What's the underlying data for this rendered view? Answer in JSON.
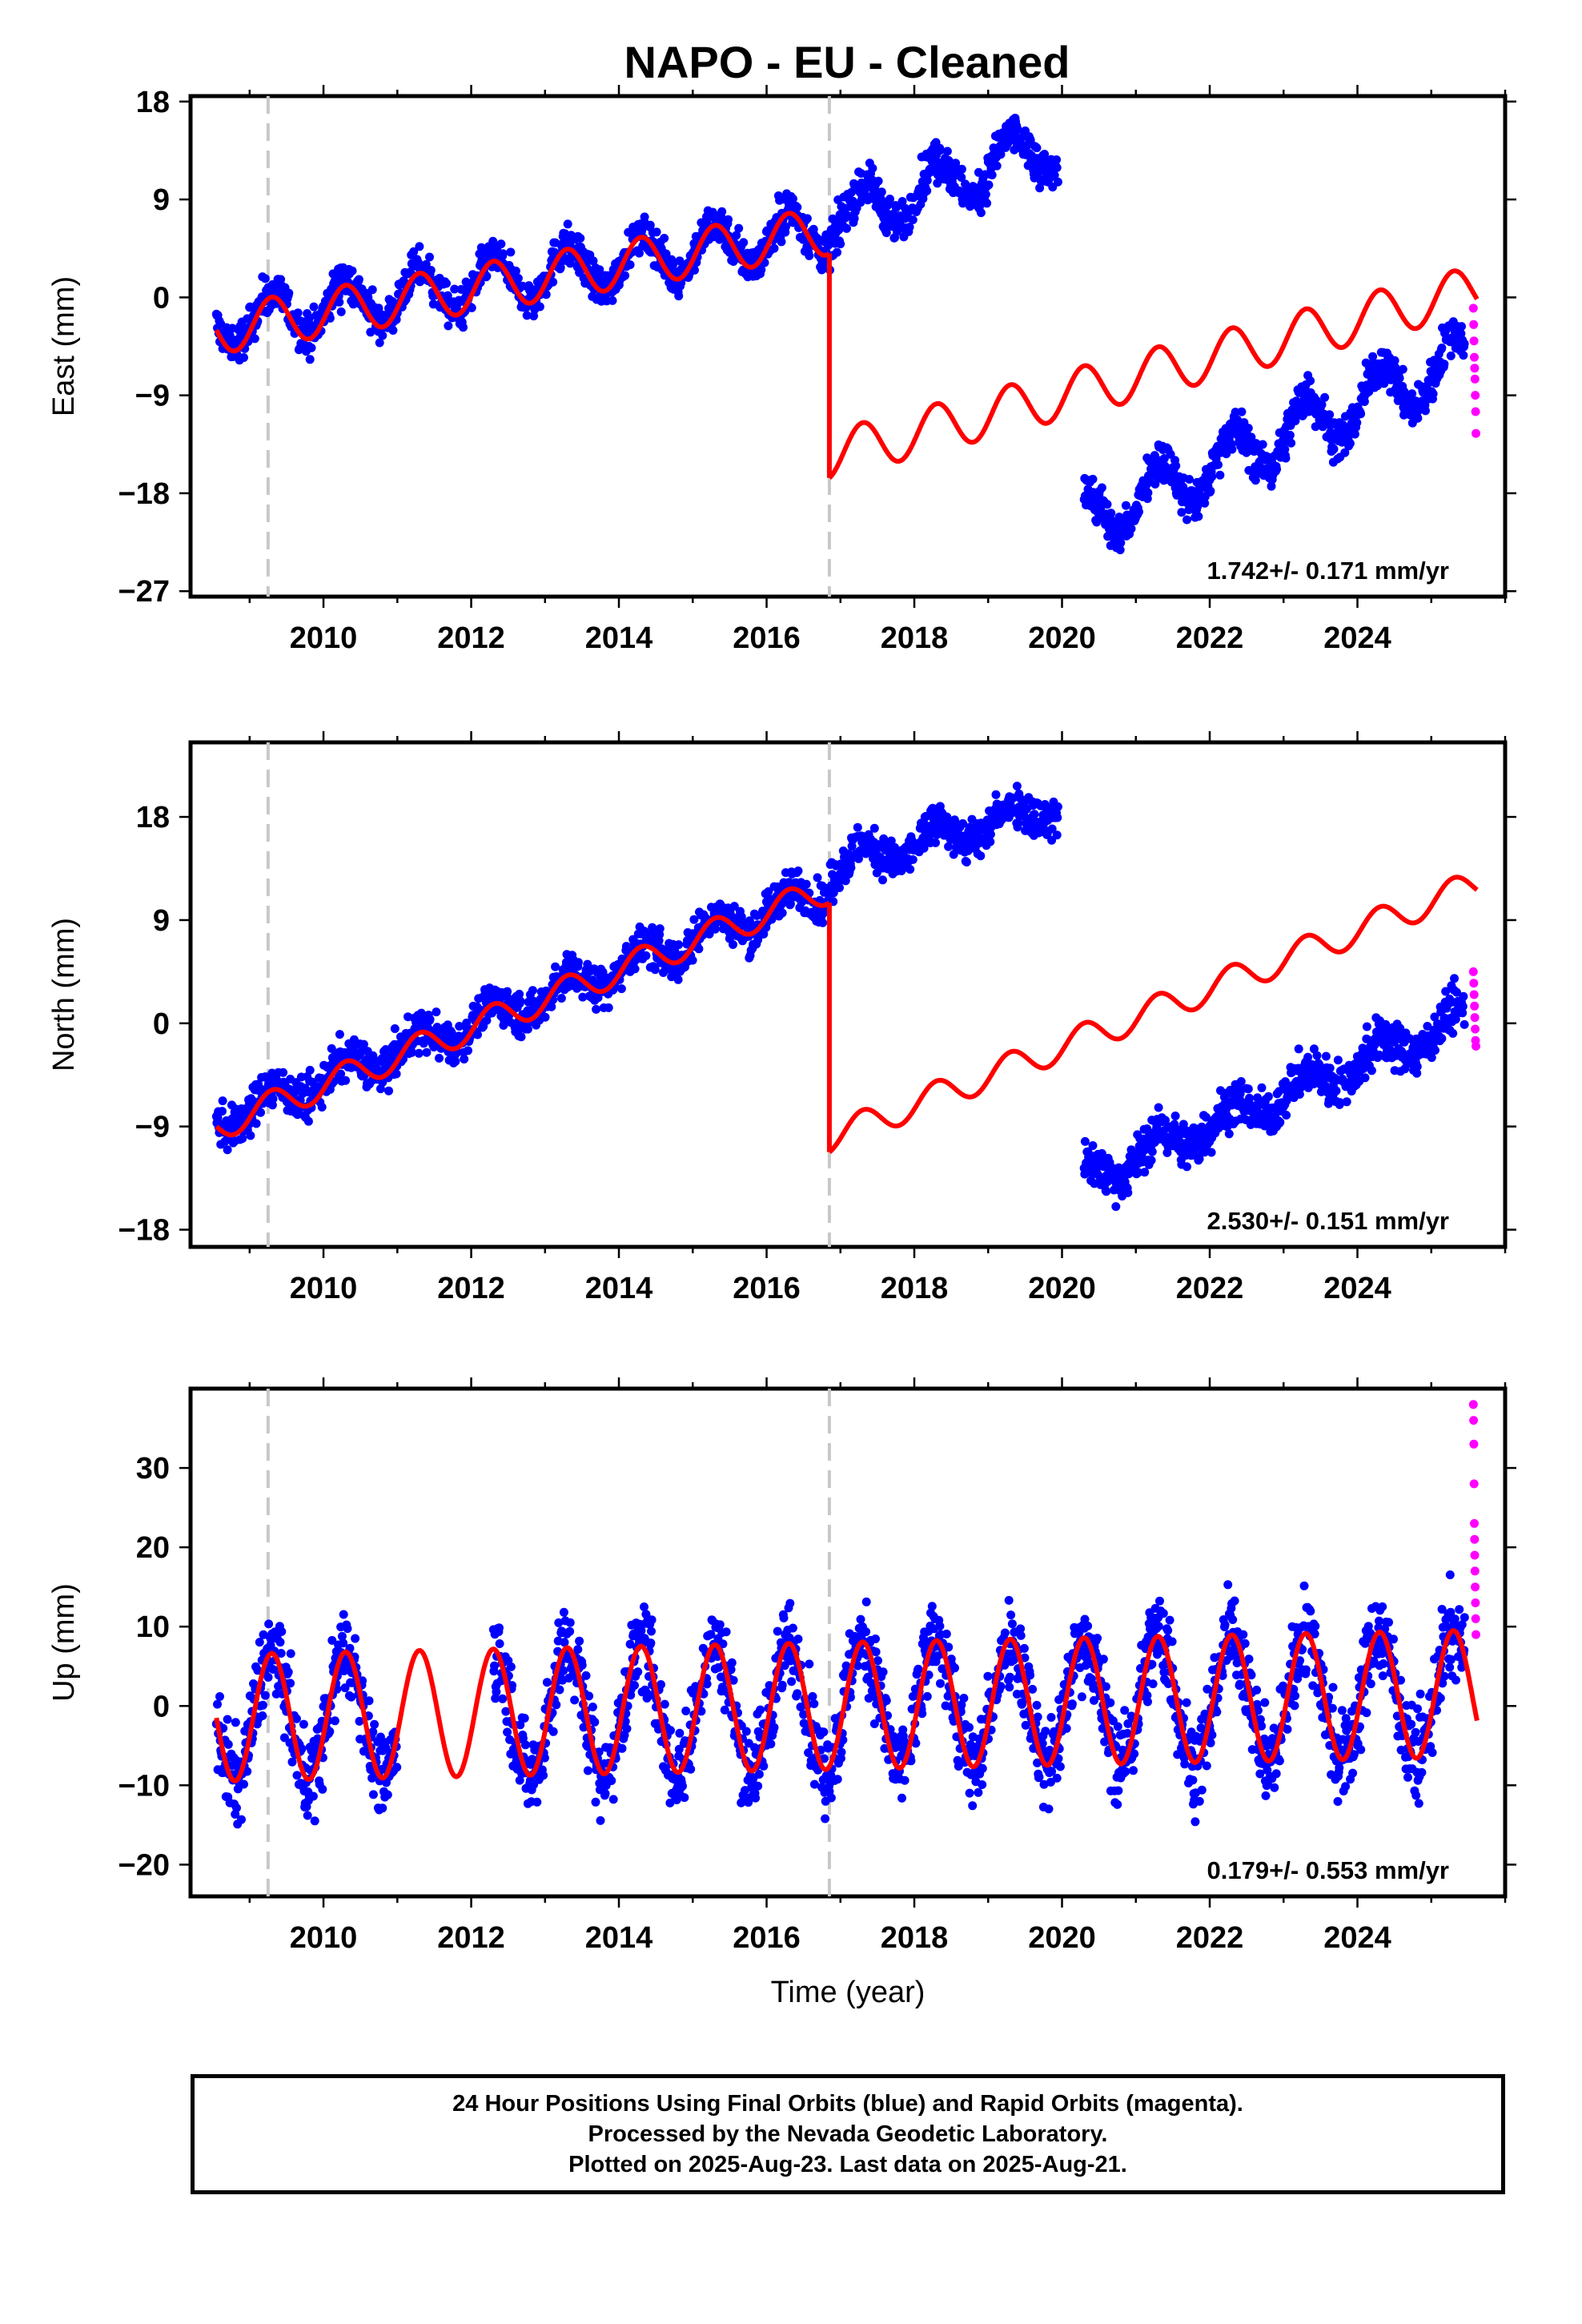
{
  "title": "NAPO  - EU - Cleaned",
  "footer": {
    "line1": "24 Hour Positions Using Final Orbits (blue) and Rapid Orbits (magenta).",
    "line2": "Processed by the Nevada Geodetic Laboratory.",
    "line3": "Plotted on 2025-Aug-23. Last data on 2025-Aug-21."
  },
  "colors": {
    "final": "#0000ff",
    "rapid": "#ff00ff",
    "model": "#ff0000",
    "event": "#c8c8c8"
  },
  "chart_data": [
    {
      "type": "scatter",
      "ylabel": "East (mm)",
      "xlabel": "",
      "xlim": [
        2008.2,
        2026.0
      ],
      "ylim": [
        -27.5,
        18.5
      ],
      "xticks": [
        2010,
        2012,
        2014,
        2016,
        2018,
        2020,
        2022,
        2024
      ],
      "yticks": [
        -27,
        -18,
        -9,
        0,
        9,
        18
      ],
      "ytick_labels": [
        "−27",
        "−18",
        "−9",
        "0",
        "9",
        "18"
      ],
      "annotation": "1.742+/- 0.171 mm/yr",
      "event_lines": [
        2009.25,
        2016.85
      ],
      "final_series": [
        {
          "segment": "pre-2016.85",
          "start": 2008.55,
          "end": 2016.85,
          "value_start": -2.5,
          "rate_mm_per_yr": 1.06,
          "annual_amplitude": 2.2,
          "scatter": 1.3
        },
        {
          "segment": "2016.85-2019.95",
          "start": 2016.85,
          "end": 2019.95,
          "value_start": 7.0,
          "rate_mm_per_yr": 2.3,
          "annual_amplitude": 2.3,
          "scatter": 1.4
        },
        {
          "segment": "2020.3-2025.45",
          "start": 2020.3,
          "end": 2025.45,
          "value_start": -20.5,
          "rate_mm_per_yr": 2.9,
          "annual_amplitude": 2.6,
          "scatter": 1.4
        }
      ],
      "rapid_series": {
        "start": 2025.45,
        "end": 2025.62,
        "values": [
          -1.0,
          -2.5,
          -4.0,
          -5.5,
          -6.5,
          -7.5,
          -9.0,
          -10.5,
          -12.5
        ]
      },
      "model": [
        {
          "start": 2008.55,
          "end": 2016.85,
          "value_start": -3.0,
          "rate_mm_per_yr": 1.1,
          "annual_amplitude": 2.2
        },
        {
          "start": 2016.85,
          "end": 2025.62,
          "value_start": -14.5,
          "rate_mm_per_yr": 1.742,
          "annual_amplitude": 2.2
        }
      ]
    },
    {
      "type": "scatter",
      "ylabel": "North (mm)",
      "xlabel": "",
      "xlim": [
        2008.2,
        2026.0
      ],
      "ylim": [
        -19.5,
        24.5
      ],
      "xticks": [
        2010,
        2012,
        2014,
        2016,
        2018,
        2020,
        2022,
        2024
      ],
      "yticks": [
        -18,
        -9,
        0,
        9,
        18
      ],
      "ytick_labels": [
        "−18",
        "−9",
        "0",
        "9",
        "18"
      ],
      "annotation": "2.530+/- 0.151 mm/yr",
      "event_lines": [
        2009.25,
        2016.85
      ],
      "final_series": [
        {
          "segment": "pre-2016.85",
          "start": 2008.55,
          "end": 2016.85,
          "value_start": -8.5,
          "rate_mm_per_yr": 2.45,
          "annual_amplitude": 1.2,
          "scatter": 1.3
        },
        {
          "segment": "2016.85-2019.95",
          "start": 2016.85,
          "end": 2019.95,
          "value_start": 13.5,
          "rate_mm_per_yr": 1.8,
          "annual_amplitude": 1.2,
          "scatter": 1.3
        },
        {
          "segment": "2020.3-2025.45",
          "start": 2020.3,
          "end": 2025.45,
          "value_start": -13.5,
          "rate_mm_per_yr": 2.7,
          "annual_amplitude": 1.2,
          "scatter": 1.4
        }
      ],
      "rapid_series": {
        "start": 2025.45,
        "end": 2025.62,
        "values": [
          4.5,
          3.5,
          2.5,
          1.5,
          0.5,
          -0.5,
          -1.5,
          -2.0
        ]
      },
      "model": [
        {
          "start": 2008.55,
          "end": 2016.85,
          "value_start": -9.0,
          "rate_mm_per_yr": 2.5,
          "annual_amplitude": 1.3
        },
        {
          "start": 2016.85,
          "end": 2025.62,
          "value_start": -10.0,
          "rate_mm_per_yr": 2.53,
          "annual_amplitude": 1.3
        }
      ]
    },
    {
      "type": "scatter",
      "ylabel": "Up (mm)",
      "xlabel": "Time (year)",
      "xlim": [
        2008.2,
        2026.0
      ],
      "ylim": [
        -24,
        40
      ],
      "xticks": [
        2010,
        2012,
        2014,
        2016,
        2018,
        2020,
        2022,
        2024
      ],
      "yticks": [
        -20,
        -10,
        0,
        10,
        20,
        30
      ],
      "ytick_labels": [
        "−20",
        "−10",
        "0",
        "10",
        "20",
        "30"
      ],
      "annotation": "0.179+/- 0.553 mm/yr",
      "event_lines": [
        2009.25,
        2016.85
      ],
      "final_series": [
        {
          "segment": "all",
          "start": 2008.55,
          "end": 2025.45,
          "value_start": -1.5,
          "rate_mm_per_yr": 0.179,
          "annual_amplitude": 8.0,
          "scatter": 4.0,
          "gap": [
            2011.0,
            2012.3
          ]
        }
      ],
      "rapid_series": {
        "start": 2025.45,
        "end": 2025.62,
        "values": [
          38.0,
          36.0,
          33.0,
          28.0,
          23.0,
          21.0,
          19.0,
          17.0,
          15.0,
          13.0,
          11.0,
          9.0
        ]
      },
      "model": [
        {
          "start": 2008.55,
          "end": 2025.62,
          "value_start": -1.5,
          "rate_mm_per_yr": 0.179,
          "annual_amplitude": 8.0
        }
      ]
    }
  ]
}
